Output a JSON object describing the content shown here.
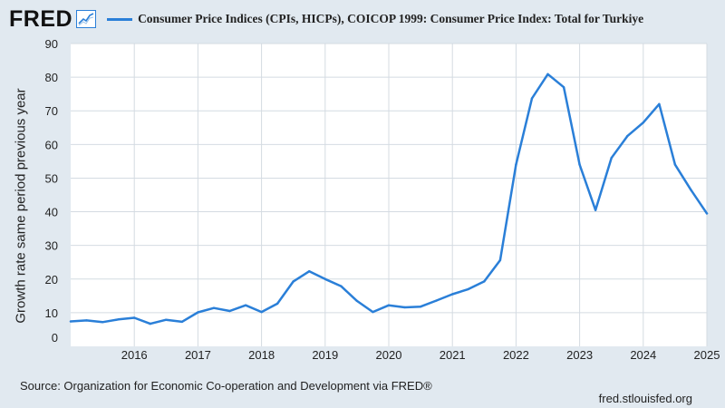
{
  "header": {
    "logo_text": "FRED",
    "series_title": "Consumer Price Indices (CPIs, HICPs), COICOP 1999: Consumer Price Index: Total for Turkiye"
  },
  "footer": {
    "source": "Source: Organization for Economic Co-operation and Development via FRED®",
    "attribution": "fred.stlouisfed.org"
  },
  "colors": {
    "line": "#2a7fd8",
    "background": "#e1e9f0",
    "plot": "#ffffff",
    "grid": "#d4dbe2"
  },
  "chart_data": {
    "type": "line",
    "title": "Consumer Price Indices (CPIs, HICPs), COICOP 1999: Consumer Price Index: Total for Turkiye",
    "xlabel": "",
    "ylabel": "Growth rate same period previous year",
    "ylim": [
      0,
      90
    ],
    "yticks": [
      0,
      10,
      20,
      30,
      40,
      50,
      60,
      70,
      80,
      90
    ],
    "xlim": [
      2015.0,
      2025.0
    ],
    "xticks": [
      2016,
      2017,
      2018,
      2019,
      2020,
      2021,
      2022,
      2023,
      2024,
      2025
    ],
    "grid": true,
    "legend": "top-left",
    "series": [
      {
        "name": "Consumer Price Indices (CPIs, HICPs), COICOP 1999: Consumer Price Index: Total for Turkiye",
        "x": [
          2015.0,
          2015.25,
          2015.5,
          2015.75,
          2016.0,
          2016.25,
          2016.5,
          2016.75,
          2017.0,
          2017.25,
          2017.5,
          2017.75,
          2018.0,
          2018.25,
          2018.5,
          2018.75,
          2019.0,
          2019.25,
          2019.5,
          2019.75,
          2020.0,
          2020.25,
          2020.5,
          2020.75,
          2021.0,
          2021.25,
          2021.5,
          2021.75,
          2022.0,
          2022.25,
          2022.5,
          2022.75,
          2023.0,
          2023.25,
          2023.5,
          2023.75,
          2024.0,
          2024.25,
          2024.5,
          2024.75,
          2025.0
        ],
        "values": [
          7.4,
          7.7,
          7.2,
          8.0,
          8.5,
          6.7,
          7.9,
          7.3,
          10.1,
          11.4,
          10.5,
          12.2,
          10.2,
          12.7,
          19.3,
          22.3,
          20.0,
          17.9,
          13.5,
          10.2,
          12.2,
          11.6,
          11.8,
          13.6,
          15.5,
          17.0,
          19.3,
          25.6,
          54.0,
          73.7,
          80.9,
          77.0,
          54.0,
          40.5,
          56.0,
          62.5,
          66.5,
          72.0,
          54.0,
          46.5,
          39.5
        ]
      }
    ]
  }
}
